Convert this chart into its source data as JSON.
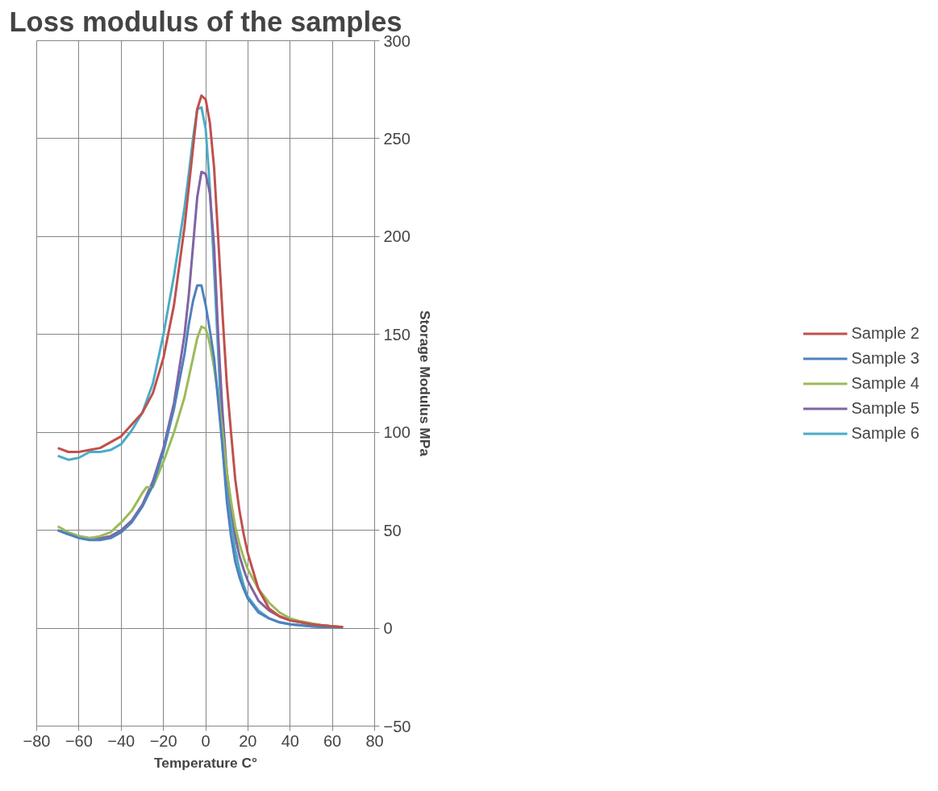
{
  "chart_data": {
    "type": "line",
    "title": "Loss modulus of the samples",
    "xlabel": "Temperature C°",
    "ylabel": "Storage Modulus MPa",
    "x": [
      -70,
      -65,
      -60,
      -55,
      -50,
      -45,
      -40,
      -35,
      -30,
      -25,
      -20,
      -15,
      -10,
      -8,
      -6,
      -4,
      -2,
      0,
      2,
      4,
      6,
      8,
      10,
      12,
      14,
      16,
      18,
      20,
      25,
      30,
      35,
      40,
      45,
      50,
      55,
      60,
      65
    ],
    "series": [
      {
        "name": "Sample 2",
        "color": "#c0504d",
        "values": [
          92,
          90,
          90,
          91,
          92,
          95,
          98,
          104,
          110,
          120,
          138,
          165,
          205,
          225,
          245,
          265,
          272,
          270,
          258,
          235,
          198,
          160,
          125,
          100,
          76,
          60,
          48,
          38,
          20,
          10,
          6,
          4,
          3,
          2,
          1.5,
          1,
          0.5
        ]
      },
      {
        "name": "Sample 3",
        "color": "#4f81bd",
        "values": [
          50,
          48,
          46,
          45,
          45,
          46,
          49,
          54,
          62,
          73,
          90,
          112,
          140,
          155,
          167,
          175,
          175,
          165,
          152,
          138,
          115,
          92,
          65,
          47,
          34,
          26,
          20,
          15,
          8,
          5,
          3,
          2,
          1.5,
          1,
          0.7,
          0.5,
          0.3
        ]
      },
      {
        "name": "Sample 4",
        "color": "#9bbb59",
        "x": [
          -70,
          -65,
          -60,
          -55,
          -50,
          -45,
          -40,
          -35,
          -30,
          -28,
          -25,
          -20,
          -15,
          -10,
          -8,
          -6,
          -4,
          -2,
          0,
          2,
          4,
          6,
          8,
          10,
          12,
          14,
          16,
          18,
          20,
          25,
          30,
          35,
          40,
          45,
          50,
          55,
          60,
          65
        ],
        "values": [
          52,
          49,
          47,
          46,
          47,
          49,
          54,
          60,
          69,
          72,
          72,
          85,
          100,
          118,
          128,
          138,
          148,
          154,
          153,
          145,
          133,
          118,
          100,
          80,
          65,
          52,
          43,
          36,
          30,
          20,
          13,
          8,
          5,
          3.5,
          2.5,
          1.5,
          1,
          0.5
        ]
      },
      {
        "name": "Sample 5",
        "color": "#8064a2",
        "values": [
          50,
          48,
          47,
          46,
          46,
          47,
          50,
          55,
          63,
          75,
          92,
          115,
          150,
          170,
          195,
          220,
          233,
          232,
          222,
          195,
          148,
          110,
          80,
          62,
          47,
          37,
          30,
          24,
          14,
          9,
          6,
          4,
          3,
          2,
          1.5,
          1,
          0.5
        ]
      },
      {
        "name": "Sample 6",
        "color": "#4bacc6",
        "values": [
          88,
          86,
          87,
          90,
          90,
          91,
          94,
          101,
          110,
          125,
          150,
          180,
          215,
          232,
          250,
          265,
          266,
          255,
          225,
          183,
          139,
          92,
          72,
          55,
          40,
          30,
          22,
          16,
          9,
          5,
          3,
          2,
          1.5,
          1,
          0.5,
          0.3,
          0.2
        ]
      }
    ],
    "xlim": [
      -80,
      80
    ],
    "ylim": [
      -50,
      300
    ],
    "xticks": [
      -80,
      -60,
      -40,
      -20,
      0,
      20,
      40,
      60,
      80
    ],
    "yticks": [
      -50,
      0,
      50,
      100,
      150,
      200,
      250,
      300
    ],
    "grid": true,
    "legend": "right",
    "marker": "none",
    "line_style": "solid"
  }
}
